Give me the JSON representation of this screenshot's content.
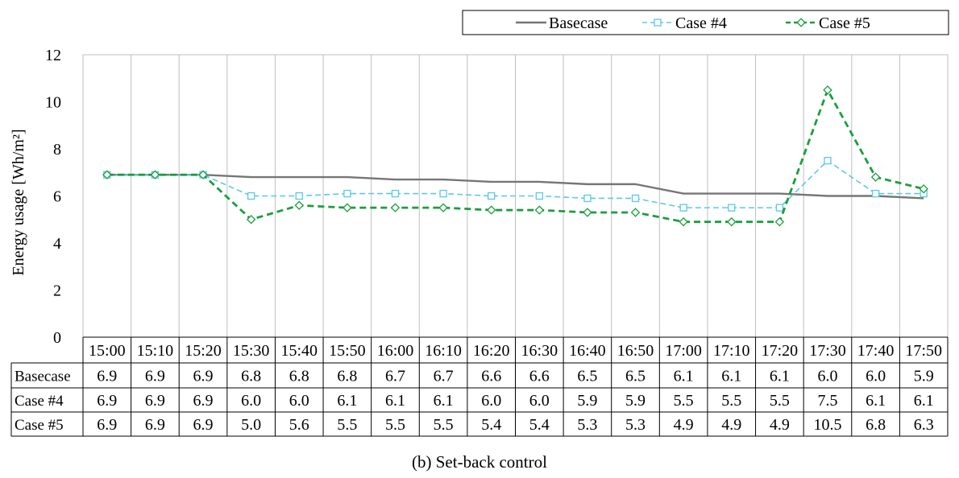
{
  "chart_data": {
    "type": "line",
    "title": "",
    "caption": "(b)  Set-back  control",
    "xlabel": "",
    "ylabel": "Energy  usage [Wh/m²]",
    "ylim": [
      0,
      12
    ],
    "yticks": [
      0,
      2,
      4,
      6,
      8,
      10,
      12
    ],
    "grid": "vertical",
    "legend_position": "top-right",
    "categories": [
      "15:00",
      "15:10",
      "15:20",
      "15:30",
      "15:40",
      "15:50",
      "16:00",
      "16:10",
      "16:20",
      "16:30",
      "16:40",
      "16:50",
      "17:00",
      "17:10",
      "17:20",
      "17:30",
      "17:40",
      "17:50"
    ],
    "series": [
      {
        "name": "Basecase",
        "color": "#767676",
        "dash": "solid",
        "marker": "none",
        "values": [
          6.9,
          6.9,
          6.9,
          6.8,
          6.8,
          6.8,
          6.7,
          6.7,
          6.6,
          6.6,
          6.5,
          6.5,
          6.1,
          6.1,
          6.1,
          6.0,
          6.0,
          5.9
        ],
        "table_values": [
          "6.9",
          "6.9",
          "6.9",
          "6.8",
          "6.8",
          "6.8",
          "6.7",
          "6.7",
          "6.6",
          "6.6",
          "6.5",
          "6.5",
          "6.1",
          "6.1",
          "6.1",
          "6.0",
          "6.0",
          "5.9"
        ]
      },
      {
        "name": "Case #4",
        "color": "#5bc8ec",
        "dash": "dashed",
        "marker": "square",
        "values": [
          6.9,
          6.9,
          6.9,
          6.0,
          6.0,
          6.1,
          6.1,
          6.1,
          6.0,
          6.0,
          5.9,
          5.9,
          5.5,
          5.5,
          5.5,
          7.5,
          6.1,
          6.1
        ],
        "table_values": [
          "6.9",
          "6.9",
          "6.9",
          "6.0",
          "6.0",
          "6.1",
          "6.1",
          "6.1",
          "6.0",
          "6.0",
          "5.9",
          "5.9",
          "5.5",
          "5.5",
          "5.5",
          "7.5",
          "6.1",
          "6.1"
        ]
      },
      {
        "name": "Case #5",
        "color": "#1a9e3e",
        "dash": "dashed",
        "marker": "diamond",
        "values": [
          6.9,
          6.9,
          6.9,
          5.0,
          5.6,
          5.5,
          5.5,
          5.5,
          5.4,
          5.4,
          5.3,
          5.3,
          4.9,
          4.9,
          4.9,
          10.5,
          6.8,
          6.3
        ],
        "table_values": [
          "6.9",
          "6.9",
          "6.9",
          "5.0",
          "5.6",
          "5.5",
          "5.5",
          "5.5",
          "5.4",
          "5.4",
          "5.3",
          "5.3",
          "4.9",
          "4.9",
          "4.9",
          "10.5",
          "6.8",
          "6.3"
        ]
      }
    ]
  }
}
